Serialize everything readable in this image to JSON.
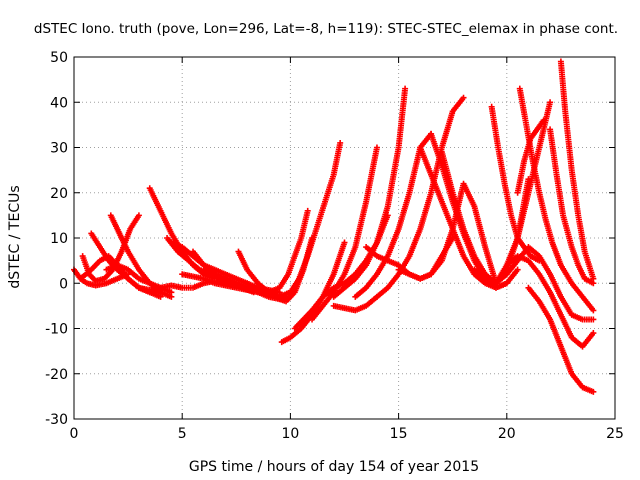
{
  "chart_data": {
    "type": "scatter",
    "title": "dSTEC Iono. truth (pove, Lon=296, Lat=-8, h=119): STEC-STEC_elemax in phase cont.",
    "xlabel": "GPS time / hours of day 154 of year 2015",
    "ylabel": "dSTEC  / TECUs",
    "xlim": [
      0,
      25
    ],
    "ylim": [
      -30,
      50
    ],
    "xticks": [
      0,
      5,
      10,
      15,
      20,
      25
    ],
    "yticks": [
      -30,
      -20,
      -10,
      0,
      10,
      20,
      30,
      40,
      50
    ],
    "grid": true,
    "marker": "+",
    "color": "#ff0000",
    "series": [
      {
        "x": [
          0.0,
          0.3,
          0.6,
          1.0,
          1.5,
          2.0,
          2.5
        ],
        "y": [
          3,
          1,
          0,
          -0.5,
          0,
          1,
          2
        ]
      },
      {
        "x": [
          0.4,
          0.7,
          1.0,
          1.4,
          1.8,
          2.2,
          2.6,
          3.0
        ],
        "y": [
          6,
          2,
          0.5,
          1,
          3,
          7,
          12,
          15
        ]
      },
      {
        "x": [
          0.8,
          1.2,
          1.6,
          2.0,
          2.5,
          3.0,
          3.5,
          4.0
        ],
        "y": [
          11,
          8,
          5,
          3,
          1,
          -1,
          -2,
          -2
        ]
      },
      {
        "x": [
          1.7,
          2.1,
          2.5,
          3.0,
          3.5,
          4.0,
          4.5
        ],
        "y": [
          15,
          11,
          7,
          3,
          0,
          -2,
          -3
        ]
      },
      {
        "x": [
          0.3,
          0.8,
          1.2,
          1.6,
          2.0,
          2.5,
          3.0,
          3.5,
          4.0
        ],
        "y": [
          1,
          3,
          5,
          6,
          4,
          1,
          -1,
          -2,
          -3
        ]
      },
      {
        "x": [
          1.5,
          2.0,
          2.5,
          3.0,
          3.5,
          4.0,
          4.5
        ],
        "y": [
          3,
          4,
          3,
          1,
          0,
          -1,
          -2
        ]
      },
      {
        "x": [
          3.5,
          4.0,
          4.5,
          5.0,
          5.5,
          6.0,
          6.5,
          7.0
        ],
        "y": [
          21,
          16,
          11,
          7,
          4,
          2,
          1,
          1
        ]
      },
      {
        "x": [
          4.3,
          4.8,
          5.3,
          5.8,
          6.3,
          6.8,
          7.3,
          7.8,
          8.3
        ],
        "y": [
          10,
          7,
          5,
          3,
          2,
          1,
          0,
          -1,
          -2
        ]
      },
      {
        "x": [
          4.5,
          5.0,
          5.5,
          6.0,
          6.5,
          7.0,
          7.5,
          8.0,
          8.5,
          9.0,
          9.5
        ],
        "y": [
          9,
          8,
          6,
          4,
          3,
          2,
          1,
          0,
          -1,
          -1.5,
          -2
        ]
      },
      {
        "x": [
          5.5,
          6.0,
          6.5,
          7.0,
          7.5,
          8.0,
          8.5,
          9.0,
          9.5
        ],
        "y": [
          7,
          4,
          2,
          1,
          0,
          -1,
          -1.5,
          -2,
          -2
        ]
      },
      {
        "x": [
          3.0,
          3.5,
          4.0,
          4.5,
          5.0,
          5.5,
          6.0,
          6.5,
          7.0,
          7.5,
          8.0
        ],
        "y": [
          -1,
          -1.5,
          -1,
          -0.5,
          -1,
          -1,
          0,
          0.5,
          0,
          -0.5,
          -1
        ]
      },
      {
        "x": [
          5.0,
          5.5,
          6.0,
          6.5,
          7.0,
          7.5,
          8.0,
          8.5,
          9.0,
          9.5,
          10.0
        ],
        "y": [
          2,
          1.5,
          1,
          0,
          -0.5,
          -1,
          -1.5,
          -2,
          -2.5,
          -3,
          -2
        ]
      },
      {
        "x": [
          6.0,
          6.5,
          7.0,
          7.5,
          8.0,
          8.5,
          9.0,
          9.5,
          10.0
        ],
        "y": [
          3,
          2,
          1,
          0,
          -1,
          -2,
          -3,
          -3.5,
          -3
        ]
      },
      {
        "x": [
          7.6,
          8.0,
          8.5,
          9.0,
          9.5,
          9.8
        ],
        "y": [
          7,
          3,
          0,
          -2,
          -3,
          -3.5
        ]
      },
      {
        "x": [
          8.0,
          8.5,
          9.0,
          9.5,
          9.8,
          10.2,
          10.6,
          11.0
        ],
        "y": [
          0,
          -1.5,
          -2.5,
          -3.5,
          -4,
          -2,
          3,
          10
        ]
      },
      {
        "x": [
          9.5,
          10.0,
          10.4,
          10.8,
          11.2,
          11.6,
          12.0,
          12.3
        ],
        "y": [
          -3,
          -2,
          1,
          6,
          12,
          18,
          24,
          31
        ]
      },
      {
        "x": [
          9.0,
          9.5,
          9.9,
          10.2,
          10.5,
          10.8
        ],
        "y": [
          -2,
          -1,
          2,
          6,
          10,
          16
        ]
      },
      {
        "x": [
          9.6,
          10.0,
          10.5,
          11.0,
          11.5,
          12.0,
          12.5
        ],
        "y": [
          -13,
          -12,
          -10,
          -7,
          -3,
          2,
          9
        ]
      },
      {
        "x": [
          10.2,
          10.6,
          11.0,
          11.5,
          12.0,
          12.5,
          13.0,
          13.5,
          14.0,
          14.5
        ],
        "y": [
          -10,
          -8,
          -6,
          -3,
          -1,
          0,
          2,
          5,
          9,
          15
        ]
      },
      {
        "x": [
          11.0,
          11.5,
          12.0,
          12.5,
          13.0,
          13.5,
          14.0
        ],
        "y": [
          -8,
          -5,
          -2,
          2,
          8,
          18,
          30
        ]
      },
      {
        "x": [
          12.0,
          12.5,
          13.0,
          13.5,
          14.0
        ],
        "y": [
          -5,
          -5.5,
          -6,
          -5,
          -3
        ]
      },
      {
        "x": [
          12.0,
          12.5,
          13.0,
          13.5,
          14.0,
          14.5,
          15.0,
          15.3
        ],
        "y": [
          -3,
          -1,
          1,
          4,
          9,
          17,
          30,
          43
        ]
      },
      {
        "x": [
          13.0,
          13.5,
          14.0,
          14.5,
          15.0,
          15.5,
          16.0,
          16.5
        ],
        "y": [
          -3,
          -1,
          2,
          6,
          12,
          20,
          30,
          33
        ]
      },
      {
        "x": [
          13.5,
          14.0,
          14.5,
          15.0,
          15.5,
          16.0,
          16.5,
          17.0,
          17.5
        ],
        "y": [
          8,
          6,
          5,
          4,
          2,
          1,
          2,
          6,
          10
        ]
      },
      {
        "x": [
          14.0,
          14.5,
          15.0,
          15.5,
          16.0,
          16.5,
          17.0,
          17.5,
          18.0
        ],
        "y": [
          -3,
          -1,
          2,
          6,
          12,
          20,
          30,
          38,
          41
        ]
      },
      {
        "x": [
          15.0,
          15.5,
          16.0,
          16.5,
          17.0,
          17.5,
          18.0,
          18.5,
          19.0,
          19.5
        ],
        "y": [
          3,
          2,
          1,
          2,
          5,
          12,
          22,
          17,
          8,
          0
        ]
      },
      {
        "x": [
          16.0,
          16.5,
          17.0,
          17.5,
          18.0,
          18.5,
          19.0,
          19.5,
          20.0
        ],
        "y": [
          30,
          24,
          18,
          12,
          6,
          2,
          0,
          -1,
          0
        ]
      },
      {
        "x": [
          16.5,
          17.0,
          17.5,
          18.0,
          18.5,
          19.0,
          19.5,
          20.0,
          20.5
        ],
        "y": [
          33,
          26,
          18,
          11,
          5,
          1,
          -1,
          0,
          3
        ]
      },
      {
        "x": [
          17.0,
          17.5,
          18.0,
          18.5,
          19.0,
          19.5,
          20.0,
          20.5,
          21.0
        ],
        "y": [
          29,
          20,
          12,
          6,
          2,
          0,
          3,
          10,
          23
        ]
      },
      {
        "x": [
          19.3,
          19.6,
          19.9,
          20.2,
          20.5,
          20.8,
          21.1,
          21.5
        ],
        "y": [
          39,
          30,
          22,
          15,
          10,
          8,
          6,
          5
        ]
      },
      {
        "x": [
          18.5,
          19.0,
          19.5,
          20.0,
          20.5,
          21.0,
          21.5,
          22.0
        ],
        "y": [
          3,
          1,
          0,
          4,
          10,
          20,
          30,
          40
        ]
      },
      {
        "x": [
          20.6,
          20.9,
          21.2,
          21.5,
          21.8,
          22.1,
          22.5,
          23.0,
          23.5,
          24.0
        ],
        "y": [
          43,
          35,
          27,
          20,
          14,
          9,
          4,
          0,
          -3,
          -6
        ]
      },
      {
        "x": [
          19.5,
          20.0,
          20.5,
          21.0,
          21.5,
          22.0,
          22.5,
          23.0,
          23.5,
          24.0
        ],
        "y": [
          0,
          2,
          5,
          8,
          6,
          2,
          -3,
          -7,
          -8,
          -8
        ]
      },
      {
        "x": [
          20.0,
          20.5,
          21.0,
          21.5,
          22.0,
          22.5,
          23.0,
          23.5,
          24.0
        ],
        "y": [
          4,
          6,
          5,
          2,
          -2,
          -7,
          -12,
          -14,
          -11
        ]
      },
      {
        "x": [
          21.0,
          21.5,
          22.0,
          22.5,
          23.0,
          23.5,
          24.0
        ],
        "y": [
          -1,
          -4,
          -8,
          -14,
          -20,
          -23,
          -24
        ]
      },
      {
        "x": [
          22.5,
          22.7,
          23.0,
          23.3,
          23.6,
          24.0
        ],
        "y": [
          49,
          38,
          25,
          15,
          7,
          1
        ]
      },
      {
        "x": [
          22.0,
          22.3,
          22.6,
          23.0,
          23.3,
          23.6,
          24.0
        ],
        "y": [
          34,
          24,
          15,
          8,
          4,
          1,
          0
        ]
      },
      {
        "x": [
          20.5,
          20.8,
          21.1,
          21.4,
          21.7
        ],
        "y": [
          20,
          27,
          32,
          34,
          36
        ]
      }
    ]
  }
}
